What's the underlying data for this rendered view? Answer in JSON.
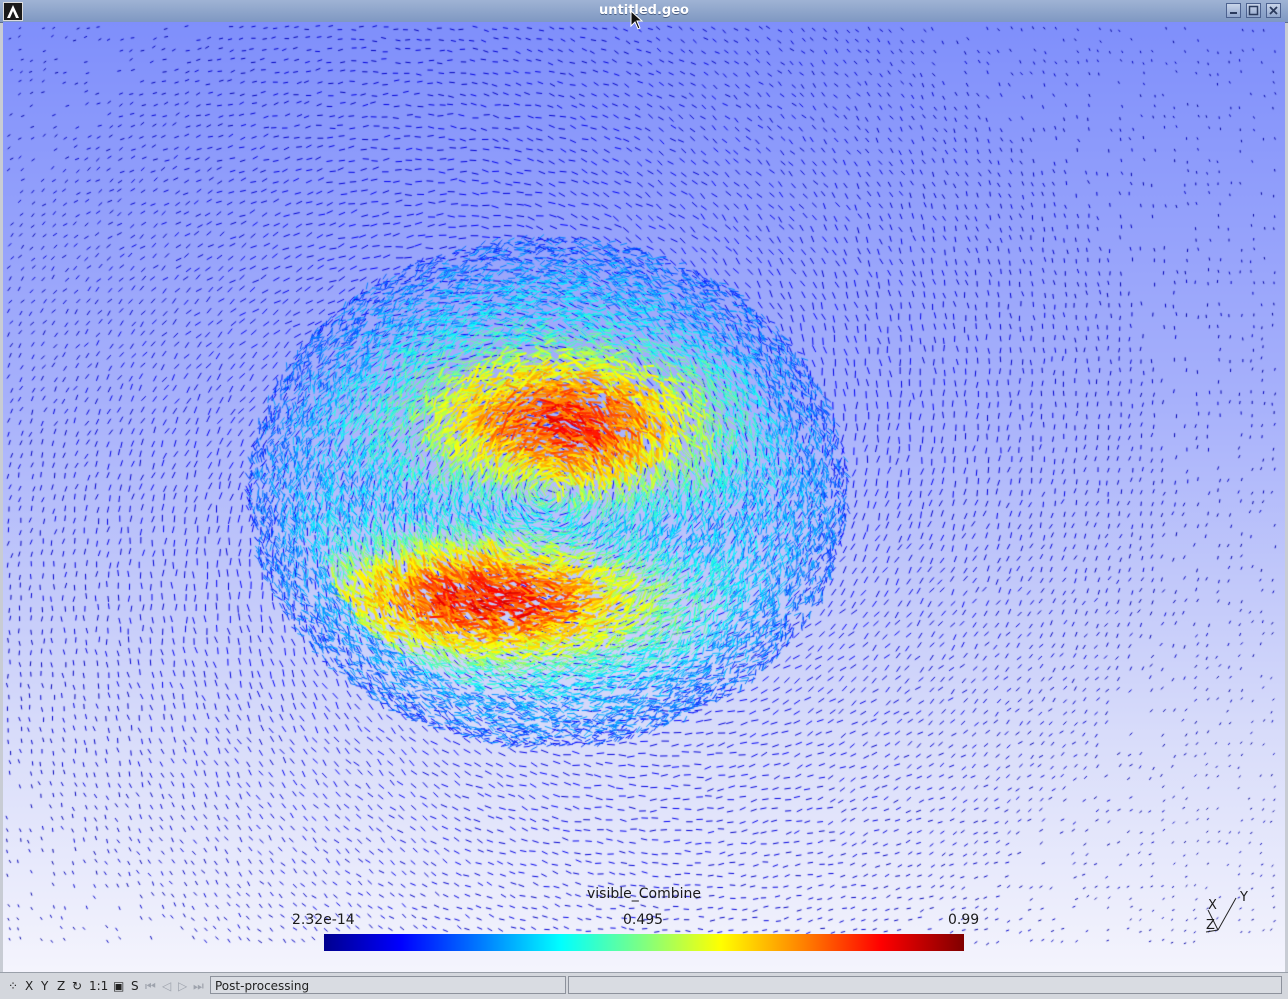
{
  "window": {
    "title": "untitled.geo",
    "buttons": [
      "minimize",
      "maximize",
      "close"
    ]
  },
  "colors": {
    "background_top": "#7f8ffb",
    "background_bottom": "#f4f4fd",
    "colormap": [
      "#00008f",
      "#0000ff",
      "#0080ff",
      "#00ffff",
      "#80ff80",
      "#ffff00",
      "#ff8000",
      "#ff0000",
      "#800000"
    ]
  },
  "view": {
    "scale": {
      "title": "visible_Combine",
      "min_label": "2.32e-14",
      "mid_label": "0.495",
      "max_label": "0.99",
      "min": 2.32e-14,
      "max": 0.99
    },
    "axes": {
      "x_label": "X",
      "y_label": "Y",
      "z_label": "Z"
    }
  },
  "statusbar": {
    "buttons": [
      {
        "name": "options-icon",
        "label": "⁘"
      },
      {
        "name": "view-x-button",
        "label": "X"
      },
      {
        "name": "view-y-button",
        "label": "Y"
      },
      {
        "name": "view-z-button",
        "label": "Z"
      },
      {
        "name": "rotate-icon",
        "label": "↻"
      },
      {
        "name": "scale-1-1-button",
        "label": "1:1"
      },
      {
        "name": "projection-icon",
        "label": "▣"
      },
      {
        "name": "snapshot-button",
        "label": "S"
      }
    ],
    "nav_buttons": [
      "⏮",
      "◁",
      "▷",
      "⏭"
    ],
    "message": "Post-processing"
  }
}
